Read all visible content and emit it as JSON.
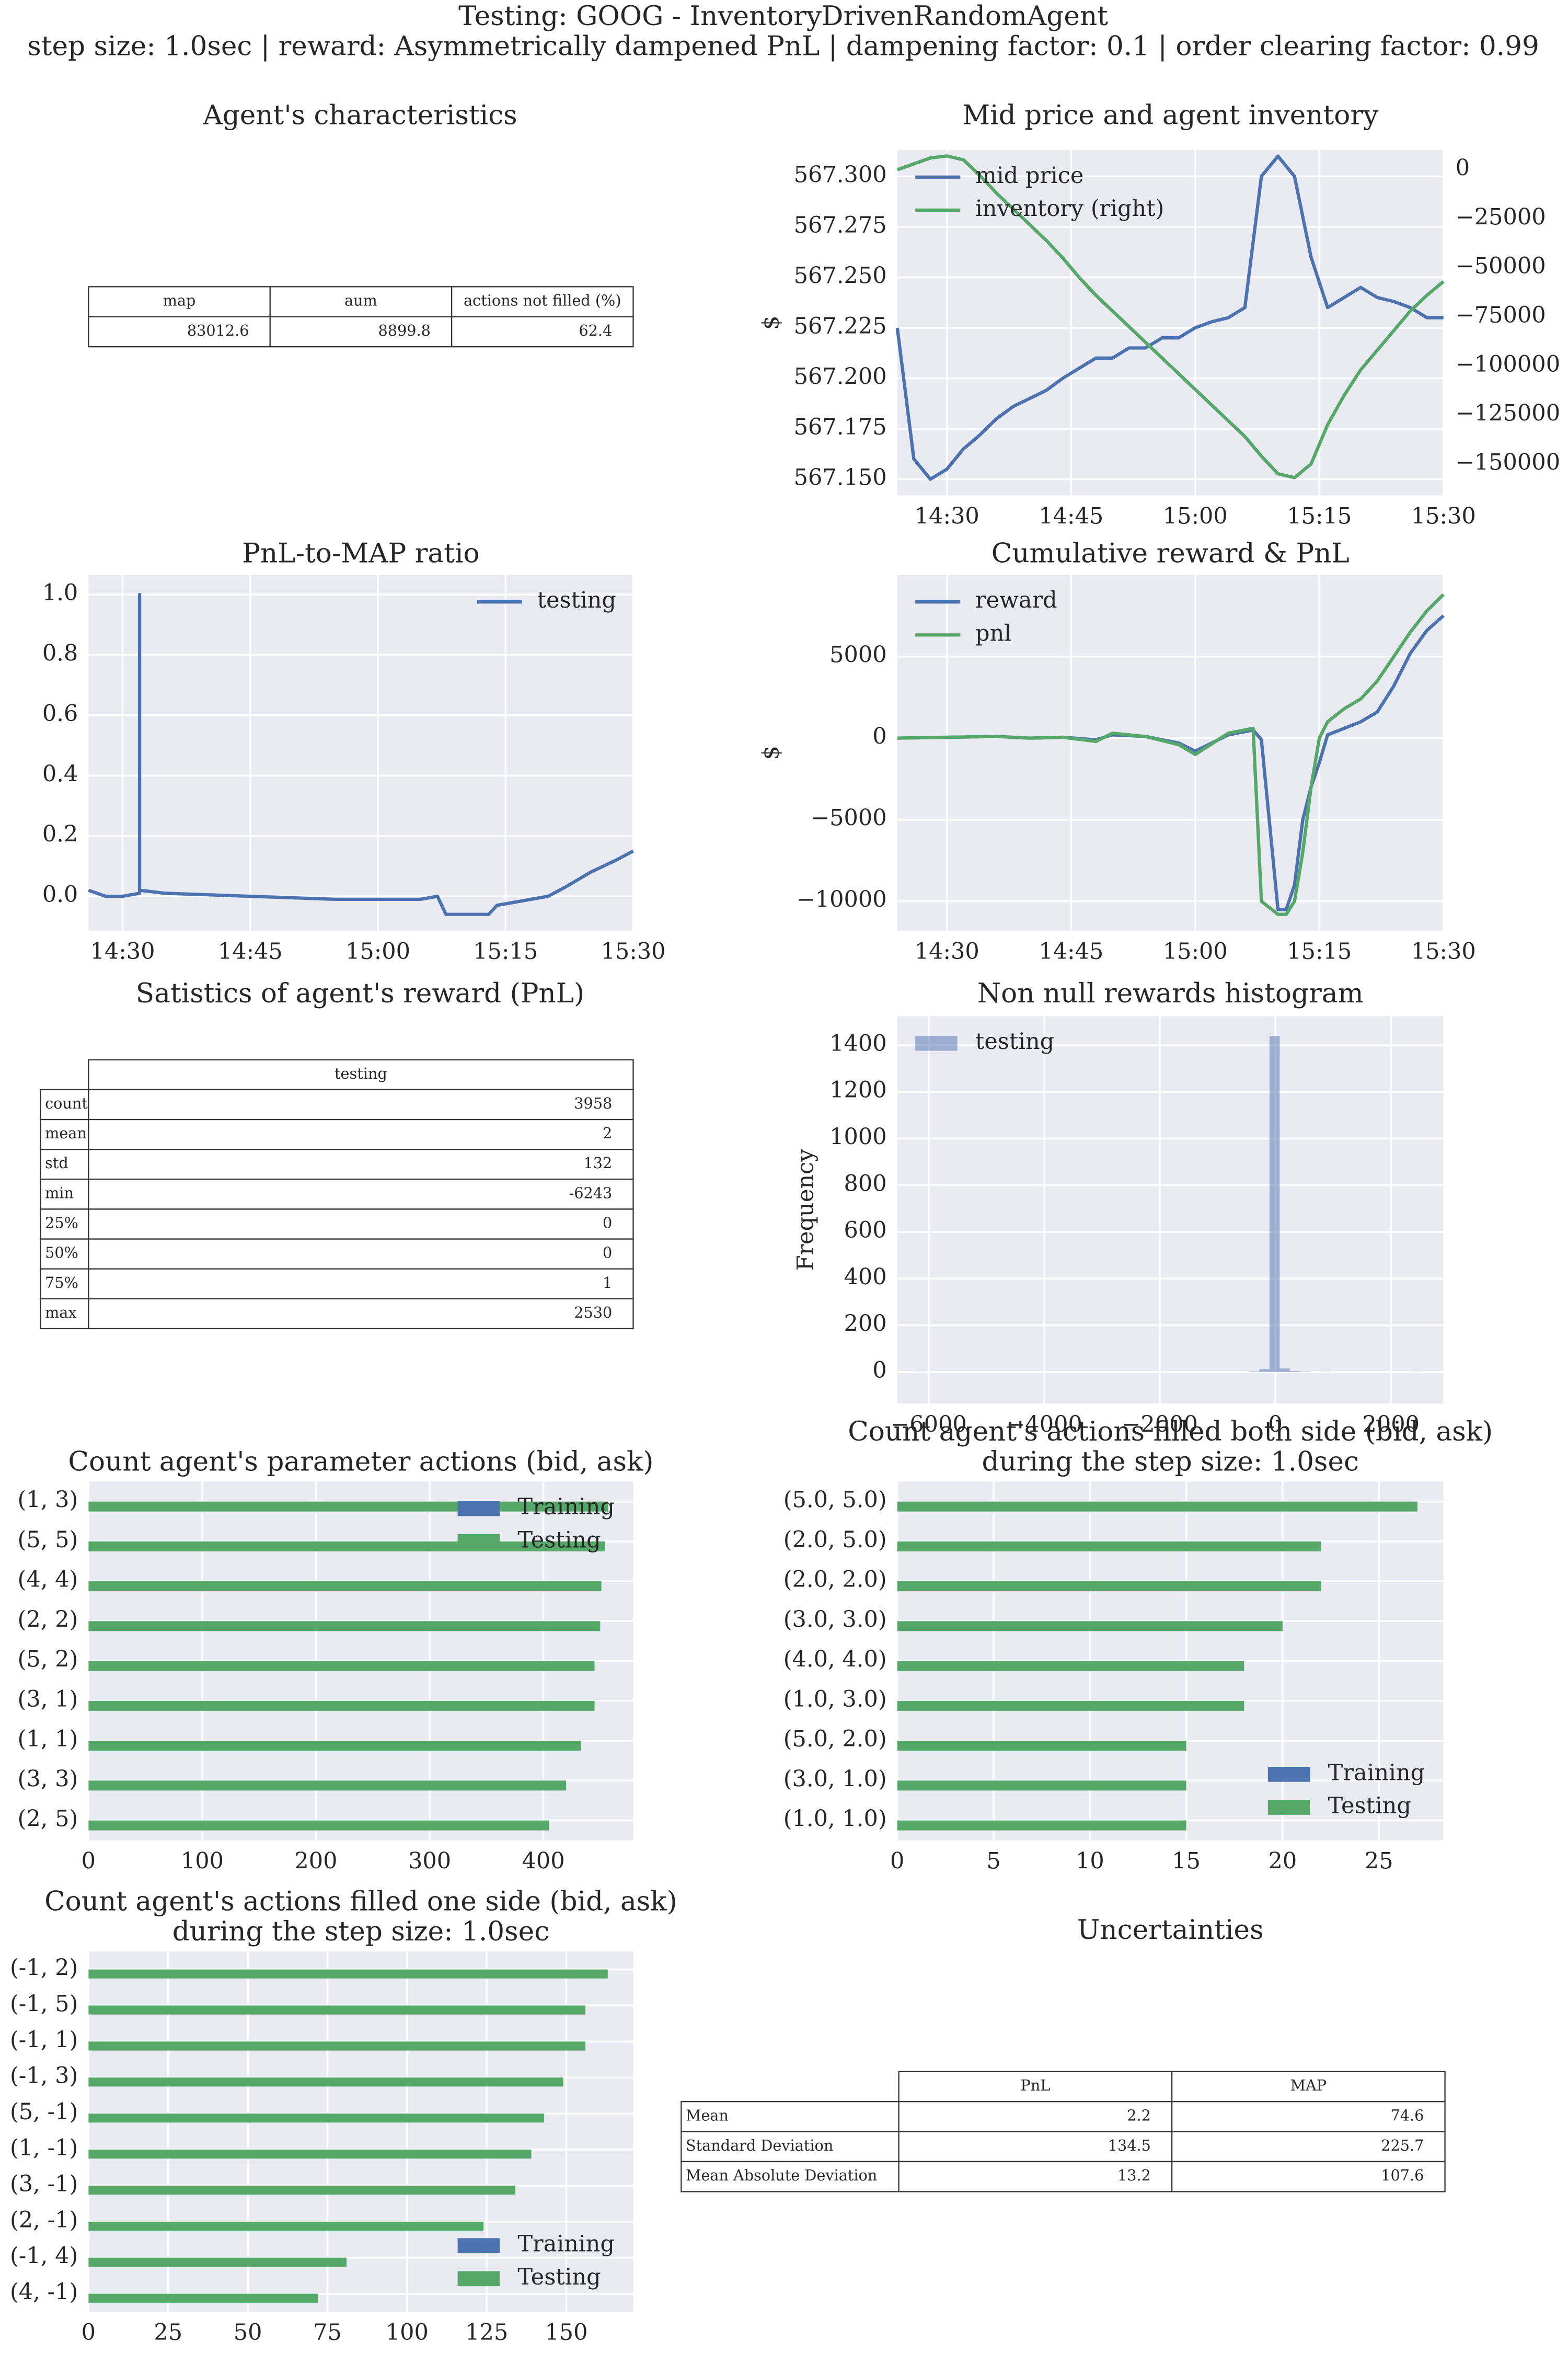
{
  "title": "Testing: GOOG - InventoryDrivenRandomAgent",
  "subtitle": "step size: 1.0sec | reward: Asymmetrically dampened PnL | dampening factor: 0.1  | order clearing factor: 0.99",
  "chart_data": [
    {
      "type": "table",
      "title": "Agent's characteristics",
      "columns": [
        "map",
        "aum",
        "actions not filled (%)"
      ],
      "rows": [
        [
          83012.6,
          8899.8,
          62.4
        ]
      ]
    },
    {
      "type": "line",
      "title": "Mid price and agent inventory",
      "ylabel": "$",
      "grid": true,
      "legend": "upper left",
      "x": [
        "14:24",
        "14:26",
        "14:28",
        "14:30",
        "14:32",
        "14:34",
        "14:36",
        "14:38",
        "14:40",
        "14:42",
        "14:44",
        "14:46",
        "14:48",
        "14:50",
        "14:52",
        "14:54",
        "14:56",
        "14:58",
        "15:00",
        "15:02",
        "15:04",
        "15:06",
        "15:08",
        "15:10",
        "15:12",
        "15:14",
        "15:16",
        "15:18",
        "15:20",
        "15:22",
        "15:24",
        "15:26",
        "15:28",
        "15:30"
      ],
      "xlim": [
        "14:24",
        "15:30"
      ],
      "xticks": [
        "14:30",
        "14:45",
        "15:00",
        "15:15",
        "15:30"
      ],
      "ylim": [
        567.142,
        567.313
      ],
      "yticks": [
        {
          "value": 567.15,
          "label": "567.150"
        },
        567.175,
        {
          "value": 567.2,
          "label": "567.200"
        },
        567.225,
        {
          "value": 567.25,
          "label": "567.250"
        },
        567.275,
        {
          "value": 567.3,
          "label": "567.300"
        }
      ],
      "y2lim": [
        -166000,
        10000
      ],
      "y2ticks": [
        0,
        {
          "value": -25000,
          "label": "−25000"
        },
        {
          "value": -50000,
          "label": "−50000"
        },
        {
          "value": -75000,
          "label": "−75000"
        },
        {
          "value": -100000,
          "label": "−100000"
        },
        {
          "value": -125000,
          "label": "−125000"
        },
        {
          "value": -150000,
          "label": "−150000"
        }
      ],
      "series": [
        {
          "name": "mid price",
          "color": "#4c72b0",
          "values": [
            567.225,
            567.16,
            567.15,
            567.155,
            567.165,
            567.172,
            567.18,
            567.186,
            567.19,
            567.194,
            567.2,
            567.205,
            567.21,
            567.21,
            567.215,
            567.215,
            567.22,
            567.22,
            567.225,
            567.228,
            567.23,
            567.235,
            567.3,
            567.31,
            567.3,
            567.26,
            567.235,
            567.24,
            567.245,
            567.24,
            567.238,
            567.235,
            567.23,
            567.23
          ]
        },
        {
          "name": "inventory (right)",
          "color": "#55a868",
          "axis": "y2",
          "values": [
            0,
            3000,
            6000,
            7000,
            5000,
            -3000,
            -12000,
            -20000,
            -28000,
            -36000,
            -45000,
            -55000,
            -64000,
            -72000,
            -80000,
            -88000,
            -96000,
            -104000,
            -112000,
            -120000,
            -128000,
            -136000,
            -146000,
            -155000,
            -157000,
            -150000,
            -130000,
            -115000,
            -102000,
            -92000,
            -82000,
            -72000,
            -64000,
            -57000
          ]
        }
      ]
    },
    {
      "type": "line",
      "title": "PnL-to-MAP ratio",
      "grid": true,
      "legend": "upper right",
      "x": [
        "14:26",
        "14:28",
        "14:30",
        "14:32",
        "14:32",
        "14:32",
        "14:35",
        "14:45",
        "14:55",
        "15:00",
        "15:05",
        "15:07",
        "15:08",
        "15:13",
        "15:14",
        "15:16",
        "15:20",
        "15:22",
        "15:25",
        "15:28",
        "15:30"
      ],
      "xlim": [
        "14:26",
        "15:30"
      ],
      "xticks": [
        "14:30",
        "14:45",
        "15:00",
        "15:15",
        "15:30"
      ],
      "ylim": [
        -0.114,
        1.065
      ],
      "yticks": [
        {
          "value": 0,
          "label": "0.0"
        },
        0.2,
        0.4,
        0.6,
        0.8,
        {
          "value": 1,
          "label": "1.0"
        }
      ],
      "series": [
        {
          "name": "testing",
          "color": "#4c72b0",
          "values": [
            0.02,
            0.0,
            0.0,
            0.01,
            1.0,
            0.02,
            0.01,
            0.0,
            -0.01,
            -0.01,
            -0.01,
            0.0,
            -0.06,
            -0.06,
            -0.03,
            -0.02,
            0.0,
            0.03,
            0.08,
            0.12,
            0.15
          ]
        }
      ]
    },
    {
      "type": "line",
      "title": "Cumulative reward & PnL",
      "ylabel": "$",
      "grid": true,
      "legend": "upper left",
      "x": [
        "14:24",
        "14:30",
        "14:36",
        "14:40",
        "14:44",
        "14:48",
        "14:50",
        "14:54",
        "14:58",
        "15:00",
        "15:04",
        "15:07",
        "15:08",
        "15:10",
        "15:11",
        "15:12",
        "15:13",
        "15:14",
        "15:15",
        "15:16",
        "15:18",
        "15:20",
        "15:22",
        "15:24",
        "15:26",
        "15:28",
        "15:30"
      ],
      "xlim": [
        "14:24",
        "15:30"
      ],
      "xticks": [
        "14:30",
        "14:45",
        "15:00",
        "15:15",
        "15:30"
      ],
      "ylim": [
        -11800,
        10000
      ],
      "yticks": [
        {
          "value": -10000,
          "label": "−10000"
        },
        {
          "value": -5000,
          "label": "−5000"
        },
        0,
        5000
      ],
      "series": [
        {
          "name": "reward",
          "color": "#4c72b0",
          "values": [
            0,
            50,
            100,
            0,
            50,
            -100,
            200,
            100,
            -300,
            -800,
            200,
            500,
            -100,
            -10500,
            -10500,
            -9000,
            -5000,
            -3000,
            -1500,
            200,
            600,
            1000,
            1600,
            3200,
            5200,
            6600,
            7500
          ]
        },
        {
          "name": "pnl",
          "color": "#55a868",
          "values": [
            0,
            50,
            100,
            0,
            50,
            -200,
            300,
            100,
            -400,
            -1000,
            300,
            600,
            -10000,
            -10800,
            -10800,
            -10000,
            -7000,
            -3000,
            0,
            1000,
            1800,
            2400,
            3500,
            5000,
            6500,
            7800,
            8800
          ]
        }
      ]
    },
    {
      "type": "table",
      "title": "Satistics of agent's reward (PnL)",
      "columns": [
        "testing"
      ],
      "index": [
        "count",
        "mean",
        "std",
        "min",
        "25%",
        "50%",
        "75%",
        "max"
      ],
      "rows": [
        [
          3958
        ],
        [
          2
        ],
        [
          132
        ],
        [
          -6243
        ],
        [
          0
        ],
        [
          0
        ],
        [
          1
        ],
        [
          2530
        ]
      ]
    },
    {
      "type": "histogram",
      "title": "Non null rewards histogram",
      "ylabel": "Frequency",
      "grid": true,
      "legend": "upper left",
      "alpha": 0.5,
      "bins": [
        -6243,
        -6067.5,
        -5892.1,
        -5716.6,
        -5541.2,
        -5365.7,
        -5190.2,
        -5014.8,
        -4839.3,
        -4663.9,
        -4488.4,
        -4312.9,
        -4137.5,
        -3962.0,
        -3786.6,
        -3611.1,
        -3435.6,
        -3260.2,
        -3084.7,
        -2909.3,
        -2733.8,
        -2558.3,
        -2382.9,
        -2207.4,
        -2032.0,
        -1856.5,
        -1681.0,
        -1505.6,
        -1330.1,
        -1154.7,
        -979.2,
        -803.7,
        -628.3,
        -452.8,
        -277.4,
        -101.9,
        73.6,
        249.0,
        424.5,
        599.9,
        775.4,
        950.9,
        1126.3,
        1301.8,
        1477.2,
        1652.7,
        1828.2,
        2003.6,
        2179.1,
        2354.5,
        2530
      ],
      "series": [
        {
          "name": "testing",
          "color": "#4c72b0",
          "values": [
            1,
            0,
            0,
            0,
            0,
            0,
            0,
            0,
            0,
            0,
            0,
            0,
            0,
            0,
            0,
            0,
            0,
            0,
            0,
            0,
            0,
            0,
            0,
            0,
            0,
            0,
            0,
            0,
            0,
            0,
            0,
            0,
            0,
            3,
            12,
            1440,
            15,
            4,
            2,
            0,
            1,
            0,
            0,
            0,
            0,
            0,
            0,
            0,
            0,
            1
          ]
        }
      ],
      "xlim": [
        -6545,
        2909
      ],
      "xticks": [
        {
          "value": -6000,
          "label": "−6000"
        },
        {
          "value": -4000,
          "label": "−4000"
        },
        {
          "value": -2000,
          "label": "−2000"
        },
        0,
        2000
      ],
      "ylim": [
        -135,
        1524
      ],
      "yticks": [
        0,
        200,
        400,
        600,
        800,
        1000,
        1200,
        1400
      ]
    },
    {
      "type": "barh",
      "title": "Count agent's parameter actions (bid, ask)",
      "grid": true,
      "legend": "upper right",
      "categories": [
        "(1, 3)",
        "(5, 5)",
        "(4, 4)",
        "(2, 2)",
        "(5, 2)",
        "(3, 1)",
        "(1, 1)",
        "(3, 3)",
        "(2, 5)"
      ],
      "series": [
        {
          "name": "Training",
          "color": "#4c72b0",
          "values": [
            0,
            0,
            0,
            0,
            0,
            0,
            0,
            0,
            0
          ]
        },
        {
          "name": "Testing",
          "color": "#55a868",
          "values": [
            457,
            454,
            451,
            450,
            445,
            445,
            433,
            420,
            405
          ]
        }
      ],
      "xlim": [
        0,
        479
      ],
      "xticks": [
        0,
        100,
        200,
        300,
        400
      ]
    },
    {
      "type": "barh",
      "title": [
        "Count agent's actions filled both side (bid, ask)",
        "during the step size: 1.0sec"
      ],
      "grid": true,
      "legend": "lower right",
      "categories": [
        "(5.0, 5.0)",
        "(2.0, 5.0)",
        "(2.0, 2.0)",
        "(3.0, 3.0)",
        "(4.0, 4.0)",
        "(1.0, 3.0)",
        "(5.0, 2.0)",
        "(3.0, 1.0)",
        "(1.0, 1.0)"
      ],
      "series": [
        {
          "name": "Training",
          "color": "#4c72b0",
          "values": [
            0,
            0,
            0,
            0,
            0,
            0,
            0,
            0,
            0
          ]
        },
        {
          "name": "Testing",
          "color": "#55a868",
          "values": [
            27,
            22,
            22,
            20,
            18,
            18,
            15,
            15,
            15
          ]
        }
      ],
      "xlim": [
        0,
        28.35
      ],
      "xticks": [
        0,
        5,
        10,
        15,
        20,
        25
      ]
    },
    {
      "type": "barh",
      "title": [
        "Count agent's actions filled one side (bid, ask)",
        "during the step size: 1.0sec"
      ],
      "grid": true,
      "legend": "lower right",
      "categories": [
        "(-1, 2)",
        "(-1, 5)",
        "(-1, 1)",
        "(-1, 3)",
        "(5, -1)",
        "(1, -1)",
        "(3, -1)",
        "(2, -1)",
        "(-1, 4)",
        "(4, -1)"
      ],
      "series": [
        {
          "name": "Training",
          "color": "#4c72b0",
          "values": [
            0,
            0,
            0,
            0,
            0,
            0,
            0,
            0,
            0,
            0
          ]
        },
        {
          "name": "Testing",
          "color": "#55a868",
          "values": [
            163,
            156,
            156,
            149,
            143,
            139,
            134,
            124,
            81,
            72
          ]
        }
      ],
      "xlim": [
        0,
        171
      ],
      "xticks": [
        0,
        25,
        50,
        75,
        100,
        125,
        150
      ]
    },
    {
      "type": "table",
      "title": "Uncertainties",
      "columns": [
        "PnL",
        "MAP"
      ],
      "index": [
        "Mean",
        "Standard Deviation",
        "Mean Absolute Deviation"
      ],
      "rows": [
        [
          2.2,
          74.6
        ],
        [
          134.5,
          225.7
        ],
        [
          13.2,
          107.6
        ]
      ]
    }
  ]
}
